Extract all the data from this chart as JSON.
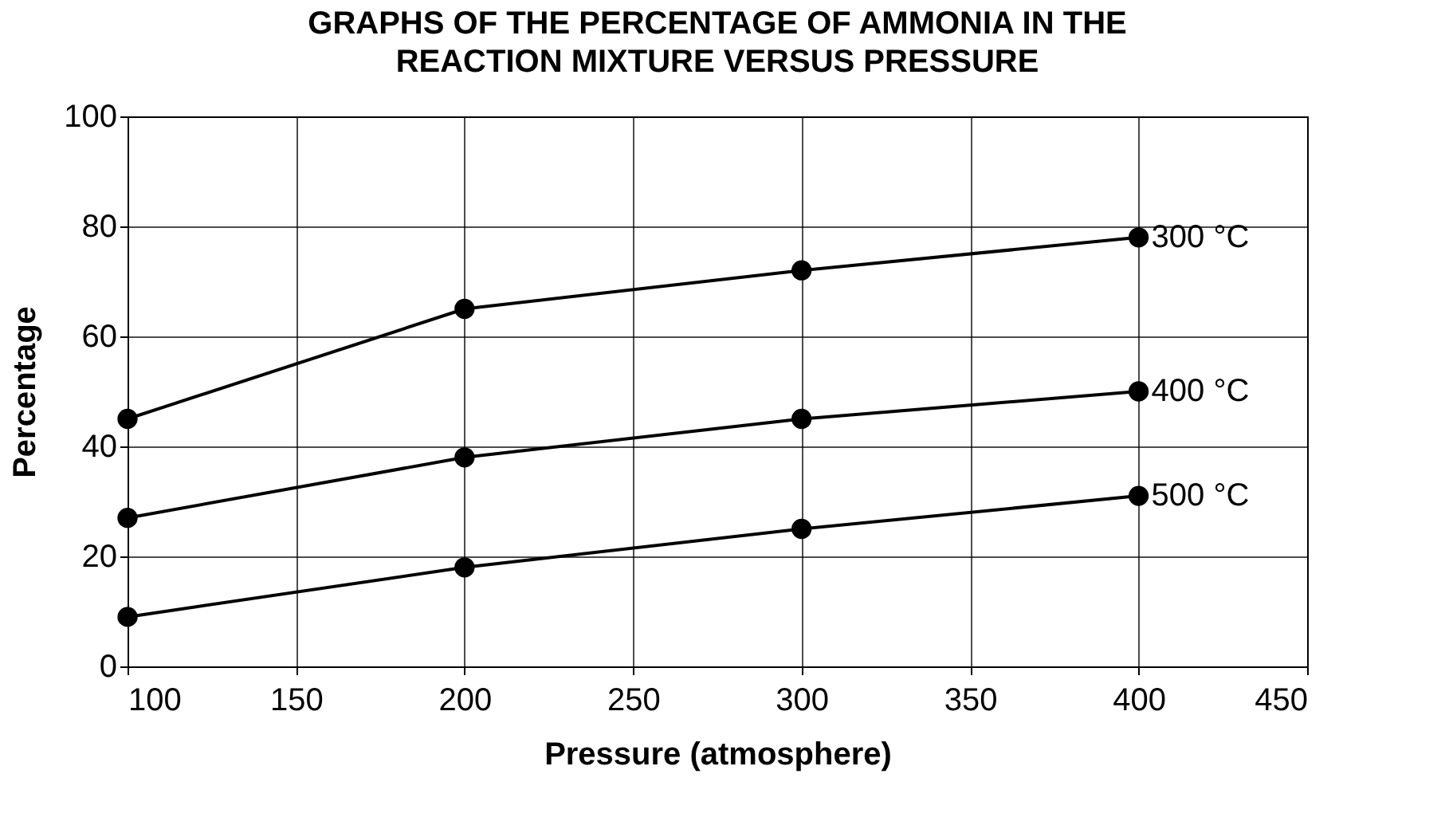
{
  "chart_data": {
    "type": "line",
    "title": "GRAPHS OF THE PERCENTAGE OF AMMONIA IN THE REACTION MIXTURE VERSUS PRESSURE",
    "xlabel": "Pressure (atmosphere)",
    "ylabel": "Percentage",
    "x": [
      100,
      200,
      300,
      400
    ],
    "series": [
      {
        "name": "300 °C",
        "color": "#000000",
        "values": [
          45,
          65,
          72,
          78
        ]
      },
      {
        "name": "400 °C",
        "color": "#000000",
        "values": [
          27,
          38,
          45,
          50
        ]
      },
      {
        "name": "500 °C",
        "color": "#000000",
        "values": [
          9,
          18,
          25,
          31
        ]
      }
    ],
    "xlim": [
      100,
      450
    ],
    "ylim": [
      0,
      100
    ],
    "xticks": [
      100,
      150,
      200,
      250,
      300,
      350,
      400,
      450
    ],
    "yticks": [
      0,
      20,
      40,
      60,
      80,
      100
    ],
    "grid": true,
    "legend": false,
    "marker": "circle",
    "line_style": "solid"
  }
}
